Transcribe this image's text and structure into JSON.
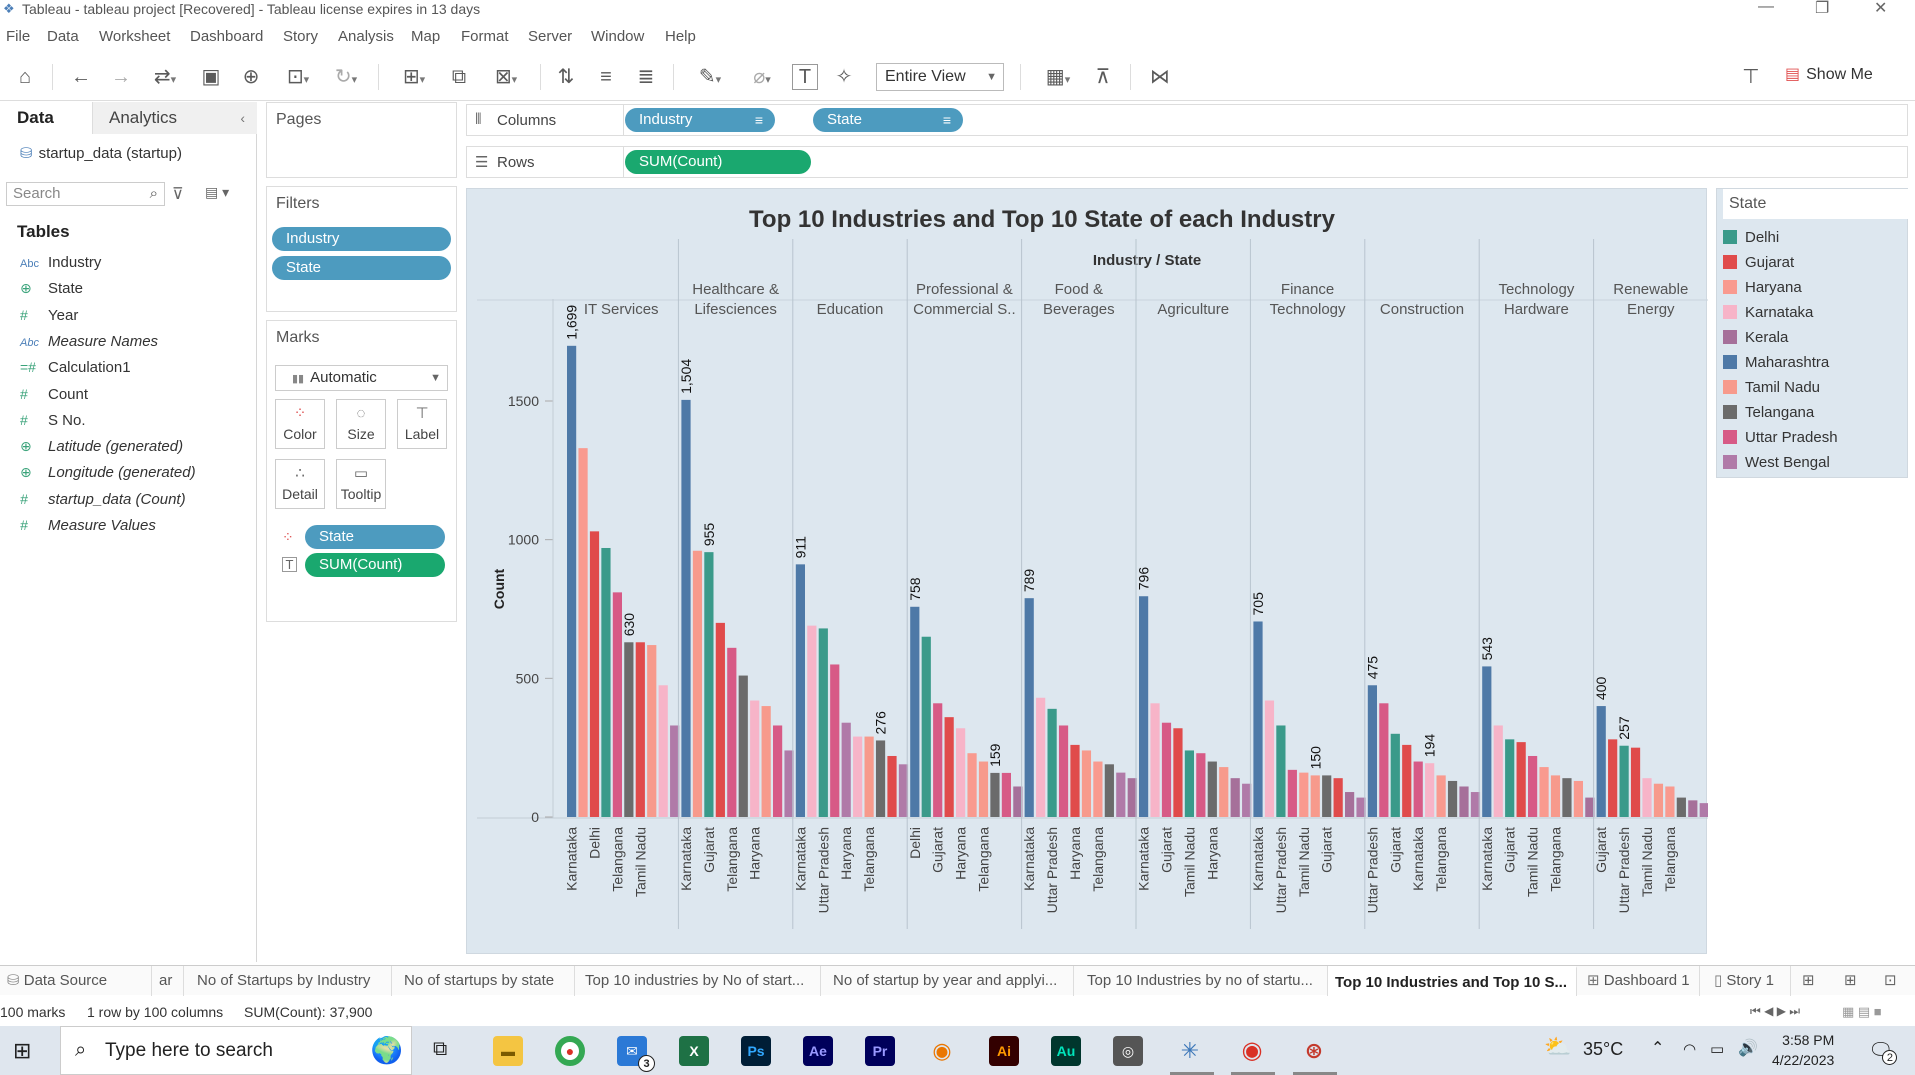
{
  "window": {
    "title": "Tableau - tableau project [Recovered] - Tableau license expires in 13 days"
  },
  "menu": [
    "File",
    "Data",
    "Worksheet",
    "Dashboard",
    "Story",
    "Analysis",
    "Map",
    "Format",
    "Server",
    "Window",
    "Help"
  ],
  "toolbar": {
    "fit_mode": "Entire View",
    "show_me": "Show Me"
  },
  "data_pane": {
    "tabs": [
      "Data",
      "Analytics"
    ],
    "datasource": "startup_data (startup)",
    "search_placeholder": "Search",
    "tables_label": "Tables",
    "fields": [
      {
        "icon": "Abc",
        "name": "Industry",
        "italic": false
      },
      {
        "icon": "globe",
        "name": "State",
        "italic": false
      },
      {
        "icon": "#",
        "name": "Year",
        "italic": false
      },
      {
        "icon": "Abc",
        "name": "Measure Names",
        "italic": true
      },
      {
        "icon": "=#",
        "name": "Calculation1",
        "italic": false
      },
      {
        "icon": "#",
        "name": "Count",
        "italic": false
      },
      {
        "icon": "#",
        "name": "S No.",
        "italic": false
      },
      {
        "icon": "globe",
        "name": "Latitude (generated)",
        "italic": true
      },
      {
        "icon": "globe",
        "name": "Longitude (generated)",
        "italic": true
      },
      {
        "icon": "#",
        "name": "startup_data (Count)",
        "italic": true
      },
      {
        "icon": "#",
        "name": "Measure Values",
        "italic": true
      }
    ]
  },
  "pages": {
    "label": "Pages"
  },
  "filters": {
    "label": "Filters",
    "items": [
      "Industry",
      "State"
    ]
  },
  "marks": {
    "label": "Marks",
    "type": "Automatic",
    "buttons": [
      "Color",
      "Size",
      "Label",
      "Detail",
      "Tooltip"
    ],
    "pills": [
      "State",
      "SUM(Count)"
    ]
  },
  "shelves": {
    "columns_label": "Columns",
    "columns": [
      "Industry",
      "State"
    ],
    "rows_label": "Rows",
    "rows": [
      "SUM(Count)"
    ]
  },
  "chart_data": {
    "type": "bar",
    "title": "Top 10 Industries and Top 10 State of each Industry",
    "header": "Industry / State",
    "ylabel": "Count",
    "ylim": [
      0,
      1800
    ],
    "yticks": [
      0,
      500,
      1000,
      1500
    ],
    "industries": [
      {
        "name": [
          "IT Services"
        ],
        "values": [
          1699,
          1330,
          1030,
          970,
          810,
          630,
          630,
          620,
          475,
          330
        ],
        "states": [
          "Maharashtra",
          "Haryana",
          "Gujarat",
          "Delhi",
          "Uttar Pradesh",
          "Telangana",
          "Gujarat",
          "Tamil Nadu",
          "Karnataka",
          "West Bengal"
        ],
        "labels": {
          "0": "1,699",
          "5": "630"
        },
        "axis": [
          "Karnataka",
          "Delhi",
          "Telangana",
          "Tamil Nadu"
        ]
      },
      {
        "name": [
          "Healthcare &",
          "Lifesciences"
        ],
        "values": [
          1504,
          960,
          955,
          700,
          610,
          510,
          420,
          400,
          330,
          240
        ],
        "states": [
          "Maharashtra",
          "Tamil Nadu",
          "Delhi",
          "Gujarat",
          "Uttar Pradesh",
          "Telangana",
          "Karnataka",
          "Tamil Nadu",
          "Uttar Pradesh",
          "West Bengal"
        ],
        "labels": {
          "0": "1,504",
          "2": "955"
        },
        "axis": [
          "Karnataka",
          "Gujarat",
          "Telangana",
          "Haryana"
        ]
      },
      {
        "name": [
          "Education"
        ],
        "values": [
          911,
          690,
          680,
          550,
          340,
          290,
          290,
          276,
          220,
          190
        ],
        "states": [
          "Maharashtra",
          "Karnataka",
          "Delhi",
          "Uttar Pradesh",
          "West Bengal",
          "Karnataka",
          "Tamil Nadu",
          "Telangana",
          "Gujarat",
          "West Bengal"
        ],
        "labels": {
          "0": "911",
          "7": "276"
        },
        "axis": [
          "Karnataka",
          "Uttar Pradesh",
          "Haryana",
          "Telangana"
        ]
      },
      {
        "name": [
          "Professional &",
          "Commercial S.."
        ],
        "values": [
          758,
          650,
          410,
          360,
          320,
          230,
          200,
          159,
          159,
          110
        ],
        "states": [
          "Maharashtra",
          "Delhi",
          "Uttar Pradesh",
          "Gujarat",
          "Karnataka",
          "Haryana",
          "Tamil Nadu",
          "Telangana",
          "Uttar Pradesh",
          "Kerala"
        ],
        "labels": {
          "0": "758",
          "7": "159"
        },
        "axis": [
          "Delhi",
          "Gujarat",
          "Haryana",
          "Telangana"
        ]
      },
      {
        "name": [
          "Food &",
          "Beverages"
        ],
        "values": [
          789,
          430,
          390,
          330,
          260,
          240,
          200,
          190,
          160,
          140
        ],
        "states": [
          "Maharashtra",
          "Karnataka",
          "Delhi",
          "Uttar Pradesh",
          "Gujarat",
          "Tamil Nadu",
          "Haryana",
          "Telangana",
          "West Bengal",
          "Kerala"
        ],
        "labels": {
          "0": "789"
        },
        "axis": [
          "Karnataka",
          "Uttar Pradesh",
          "Haryana",
          "Telangana"
        ]
      },
      {
        "name": [
          "Agriculture"
        ],
        "values": [
          796,
          410,
          340,
          320,
          240,
          230,
          200,
          180,
          140,
          120
        ],
        "states": [
          "Maharashtra",
          "Karnataka",
          "Uttar Pradesh",
          "Gujarat",
          "Delhi",
          "Uttar Pradesh",
          "Telangana",
          "Tamil Nadu",
          "Kerala",
          "West Bengal"
        ],
        "labels": {
          "0": "796"
        },
        "axis": [
          "Karnataka",
          "Gujarat",
          "Tamil Nadu",
          "Haryana"
        ]
      },
      {
        "name": [
          "Finance",
          "Technology"
        ],
        "values": [
          705,
          420,
          330,
          170,
          160,
          150,
          150,
          140,
          90,
          70
        ],
        "states": [
          "Maharashtra",
          "Karnataka",
          "Delhi",
          "Uttar Pradesh",
          "Haryana",
          "Tamil Nadu",
          "Telangana",
          "Gujarat",
          "Kerala",
          "West Bengal"
        ],
        "labels": {
          "0": "705",
          "5": "150"
        },
        "axis": [
          "Karnataka",
          "Uttar Pradesh",
          "Tamil Nadu",
          "Gujarat"
        ]
      },
      {
        "name": [
          "Construction"
        ],
        "values": [
          475,
          410,
          300,
          260,
          200,
          194,
          150,
          130,
          110,
          90
        ],
        "states": [
          "Maharashtra",
          "Uttar Pradesh",
          "Delhi",
          "Gujarat",
          "Uttar Pradesh",
          "Karnataka",
          "Haryana",
          "Telangana",
          "Kerala",
          "West Bengal"
        ],
        "labels": {
          "0": "475",
          "5": "194"
        },
        "axis": [
          "Uttar Pradesh",
          "Gujarat",
          "Karnataka",
          "Telangana"
        ]
      },
      {
        "name": [
          "Technology",
          "Hardware"
        ],
        "values": [
          543,
          330,
          280,
          270,
          220,
          180,
          150,
          140,
          130,
          70
        ],
        "states": [
          "Maharashtra",
          "Karnataka",
          "Delhi",
          "Gujarat",
          "Uttar Pradesh",
          "Haryana",
          "Tamil Nadu",
          "Telangana",
          "Haryana",
          "Kerala"
        ],
        "labels": {
          "0": "543"
        },
        "axis": [
          "Karnataka",
          "Gujarat",
          "Tamil Nadu",
          "Telangana"
        ]
      },
      {
        "name": [
          "Renewable",
          "Energy"
        ],
        "values": [
          400,
          280,
          257,
          250,
          140,
          120,
          110,
          70,
          60,
          50
        ],
        "states": [
          "Maharashtra",
          "Gujarat",
          "Delhi",
          "Gujarat",
          "Karnataka",
          "Tamil Nadu",
          "Haryana",
          "Telangana",
          "Kerala",
          "West Bengal"
        ],
        "labels": {
          "0": "400",
          "2": "257"
        },
        "axis": [
          "Gujarat",
          "Uttar Pradesh",
          "Tamil Nadu",
          "Telangana"
        ]
      }
    ]
  },
  "legend": {
    "title": "State",
    "items": [
      {
        "name": "Delhi",
        "color": "#3a9a8a"
      },
      {
        "name": "Gujarat",
        "color": "#e04b4b"
      },
      {
        "name": "Haryana",
        "color": "#f99a8f"
      },
      {
        "name": "Karnataka",
        "color": "#f7b4c8"
      },
      {
        "name": "Kerala",
        "color": "#a6709a"
      },
      {
        "name": "Maharashtra",
        "color": "#4e79a7"
      },
      {
        "name": "Tamil Nadu",
        "color": "#f79a8c"
      },
      {
        "name": "Telangana",
        "color": "#6b6b6b"
      },
      {
        "name": "Uttar Pradesh",
        "color": "#d75a86"
      },
      {
        "name": "West Bengal",
        "color": "#b07aa8"
      }
    ]
  },
  "sheet_tabs": [
    "Data Source",
    "ar",
    "No of Startups by Industry",
    "No of startups by state",
    "Top 10 industries by No of start...",
    "No of startup by year and applyi...",
    "Top 10 Industries by no of startu...",
    "Top 10 Industries and Top 10 S...",
    "Dashboard 1",
    "Story 1"
  ],
  "status": {
    "marks": "100 marks",
    "layout": "1 row by 100 columns",
    "sum": "SUM(Count): 37,900"
  },
  "taskbar": {
    "search_placeholder": "Type here to search",
    "temperature": "35°C",
    "time": "3:58 PM",
    "date": "4/22/2023",
    "mail_badge": "3",
    "notif_badge": "2"
  }
}
